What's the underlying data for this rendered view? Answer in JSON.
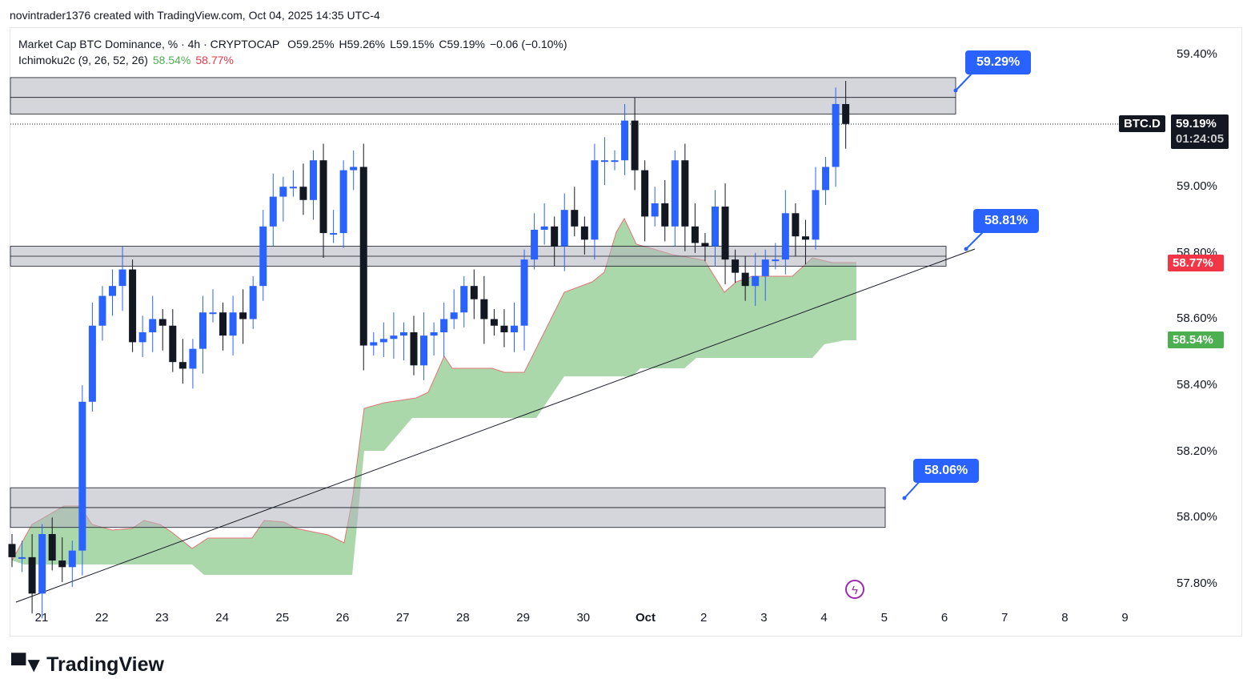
{
  "credit": "novintrader1376 created with TradingView.com, Oct 04, 2025 14:35 UTC-4",
  "legend": {
    "title": "Market Cap BTC Dominance, % · 4h · CRYPTOCAP",
    "open": "O59.25%",
    "high": "H59.26%",
    "low": "L59.15%",
    "close": "C59.19%",
    "change": "−0.06 (−0.10%)",
    "indicator": "Ichimoku2c (9, 26, 52, 26)",
    "ind_green": "58.54%",
    "ind_red": "58.77%"
  },
  "price_axis": [
    "59.40%",
    "59.00%",
    "58.80%",
    "58.60%",
    "58.40%",
    "58.20%",
    "58.00%",
    "57.80%"
  ],
  "price_ticks": [
    59.4,
    59.0,
    58.8,
    58.6,
    58.4,
    58.2,
    58.0,
    57.8
  ],
  "time_axis": [
    "21",
    "22",
    "23",
    "24",
    "25",
    "26",
    "27",
    "28",
    "29",
    "30",
    "Oct",
    "2",
    "3",
    "4",
    "5",
    "6",
    "7",
    "8",
    "9"
  ],
  "tags": {
    "symbol": "BTC.D",
    "last": "59.19%",
    "countdown": "01:24:05",
    "red": "58.77%",
    "green": "58.54%"
  },
  "callouts": [
    "59.29%",
    "58.81%",
    "58.06%"
  ],
  "colors": {
    "up": "#2962ff",
    "down": "#131722",
    "cloud": "#a5d6a7",
    "red": "#f23645",
    "green": "#4caf50"
  },
  "zones": [
    {
      "top": 59.33,
      "mid": 59.27,
      "bottom": 59.22
    },
    {
      "top": 58.82,
      "mid": 58.79,
      "bottom": 58.76
    },
    {
      "top": 58.09,
      "mid": 58.03,
      "bottom": 57.97
    }
  ],
  "chart_data": {
    "type": "candlestick",
    "first_open": 57.92,
    "closes": [
      57.88,
      57.88,
      57.77,
      57.95,
      57.87,
      57.85,
      57.9,
      58.35,
      58.58,
      58.67,
      58.7,
      58.75,
      58.53,
      58.56,
      58.6,
      58.58,
      58.47,
      58.45,
      58.51,
      58.62,
      58.62,
      58.55,
      58.62,
      58.6,
      58.7,
      58.88,
      58.97,
      59.0,
      59.0,
      58.96,
      59.08,
      58.86,
      58.86,
      59.05,
      59.06,
      58.52,
      58.53,
      58.54,
      58.55,
      58.56,
      58.46,
      58.55,
      58.56,
      58.6,
      58.62,
      58.7,
      58.66,
      58.6,
      58.58,
      58.56,
      58.58,
      58.78,
      58.87,
      58.88,
      58.82,
      58.93,
      58.88,
      58.84,
      59.08,
      59.08,
      59.08,
      59.2,
      59.05,
      58.91,
      58.95,
      58.88,
      59.08,
      58.88,
      58.83,
      58.82,
      58.94,
      58.78,
      58.74,
      58.7,
      58.73,
      58.78,
      58.78,
      58.92,
      58.85,
      58.84,
      58.99,
      59.06,
      59.25,
      59.19
    ]
  }
}
